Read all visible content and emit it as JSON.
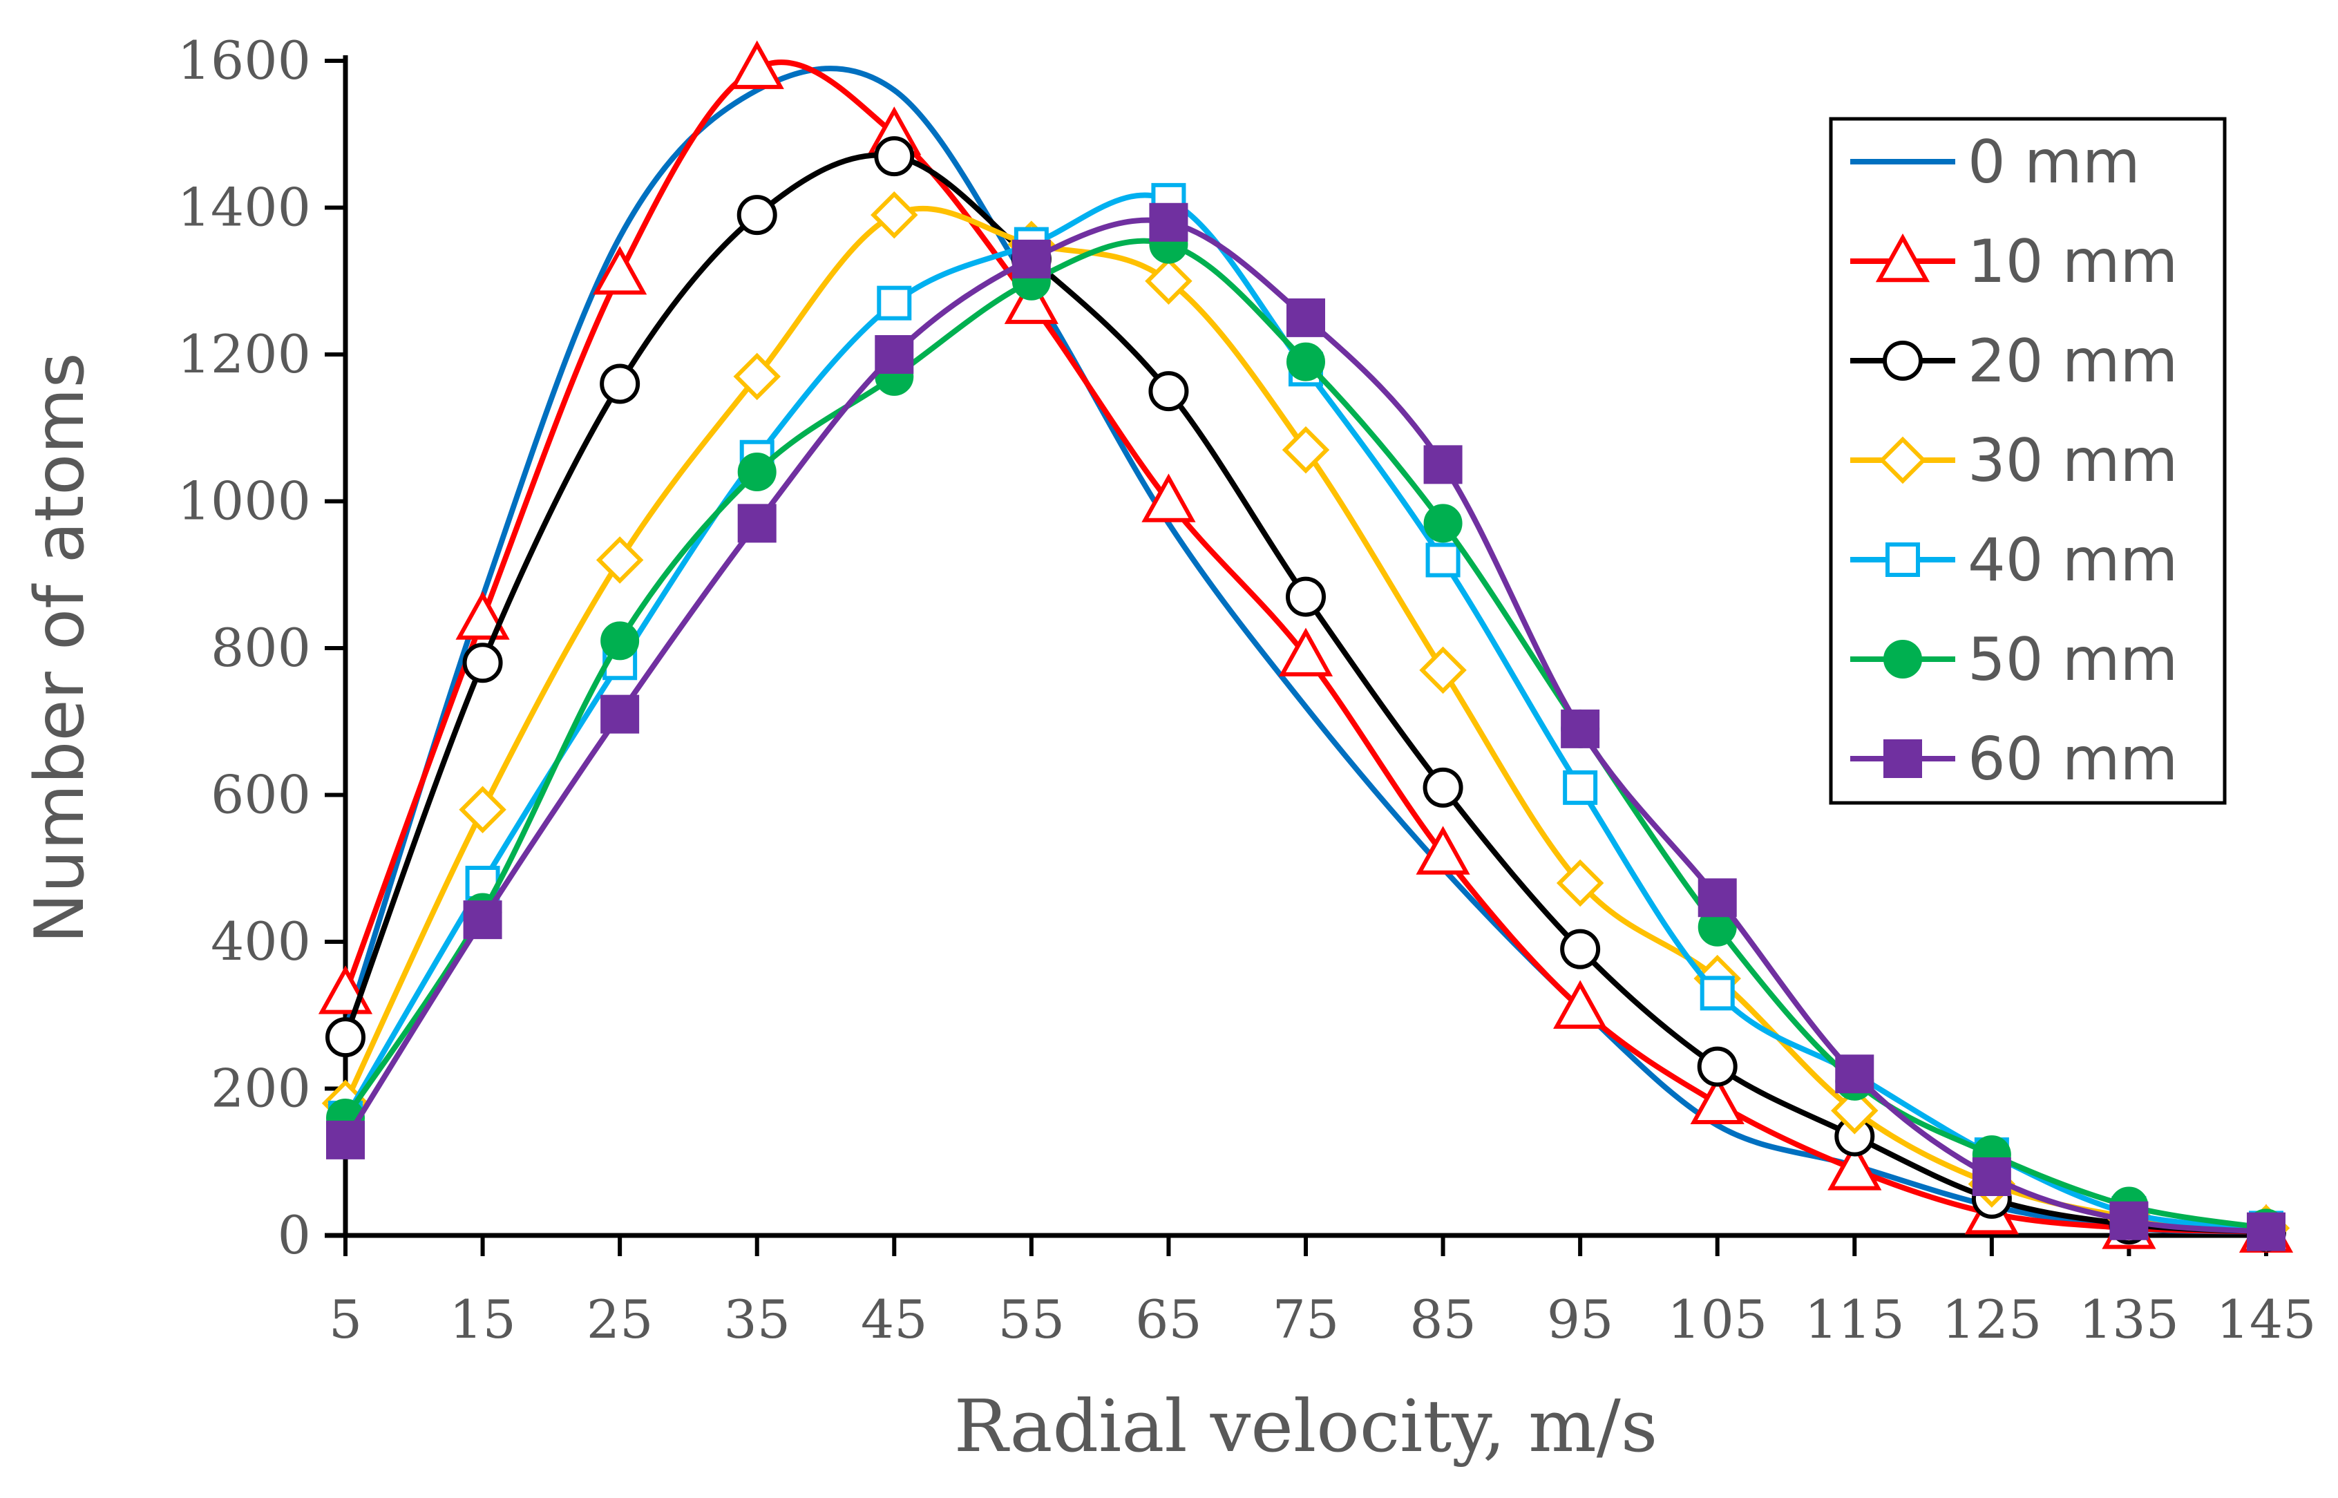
{
  "chart_data": {
    "type": "line",
    "title": "",
    "xlabel": "Radial velocity,  m/s",
    "ylabel": "Number of atoms",
    "xlim": [
      5,
      145
    ],
    "ylim": [
      0,
      1600
    ],
    "x_ticks": [
      "5",
      "15",
      "25",
      "35",
      "45",
      "55",
      "65",
      "75",
      "85",
      "95",
      "105",
      "115",
      "125",
      "135",
      "145"
    ],
    "y_ticks": [
      "0",
      "200",
      "400",
      "600",
      "800",
      "1000",
      "1200",
      "1400",
      "1600"
    ],
    "x": [
      5,
      15,
      25,
      35,
      45,
      55,
      65,
      75,
      85,
      95,
      105,
      115,
      125,
      135,
      145
    ],
    "grid": false,
    "legend_position": "top-right",
    "series": [
      {
        "name": "0 mm",
        "color": "#0070C0",
        "marker": "none",
        "values": [
          280,
          870,
          1360,
          1560,
          1560,
          1290,
          970,
          720,
          500,
          310,
          150,
          95,
          40,
          10,
          5
        ]
      },
      {
        "name": "10 mm",
        "color": "#FF0000",
        "marker": "triangle-open",
        "values": [
          330,
          840,
          1310,
          1590,
          1500,
          1270,
          1000,
          790,
          520,
          310,
          180,
          90,
          30,
          10,
          5
        ]
      },
      {
        "name": "20 mm",
        "color": "#000000",
        "marker": "circle-open",
        "values": [
          270,
          780,
          1160,
          1390,
          1470,
          1330,
          1150,
          870,
          610,
          390,
          230,
          135,
          50,
          15,
          5
        ]
      },
      {
        "name": "30 mm",
        "color": "#FFC000",
        "marker": "diamond-open",
        "values": [
          180,
          580,
          920,
          1170,
          1390,
          1350,
          1300,
          1070,
          770,
          480,
          350,
          170,
          70,
          25,
          10
        ]
      },
      {
        "name": "40 mm",
        "color": "#00B0F0",
        "marker": "square-open",
        "values": [
          160,
          480,
          780,
          1060,
          1270,
          1350,
          1410,
          1180,
          920,
          610,
          330,
          220,
          110,
          30,
          10
        ]
      },
      {
        "name": "50 mm",
        "color": "#00B050",
        "marker": "circle-filled",
        "values": [
          160,
          440,
          810,
          1040,
          1170,
          1300,
          1350,
          1190,
          970,
          690,
          420,
          210,
          110,
          40,
          10
        ]
      },
      {
        "name": "60 mm",
        "color": "#7030A0",
        "marker": "square-filled",
        "values": [
          130,
          430,
          710,
          970,
          1200,
          1330,
          1380,
          1250,
          1050,
          690,
          460,
          220,
          80,
          20,
          5
        ]
      }
    ]
  }
}
